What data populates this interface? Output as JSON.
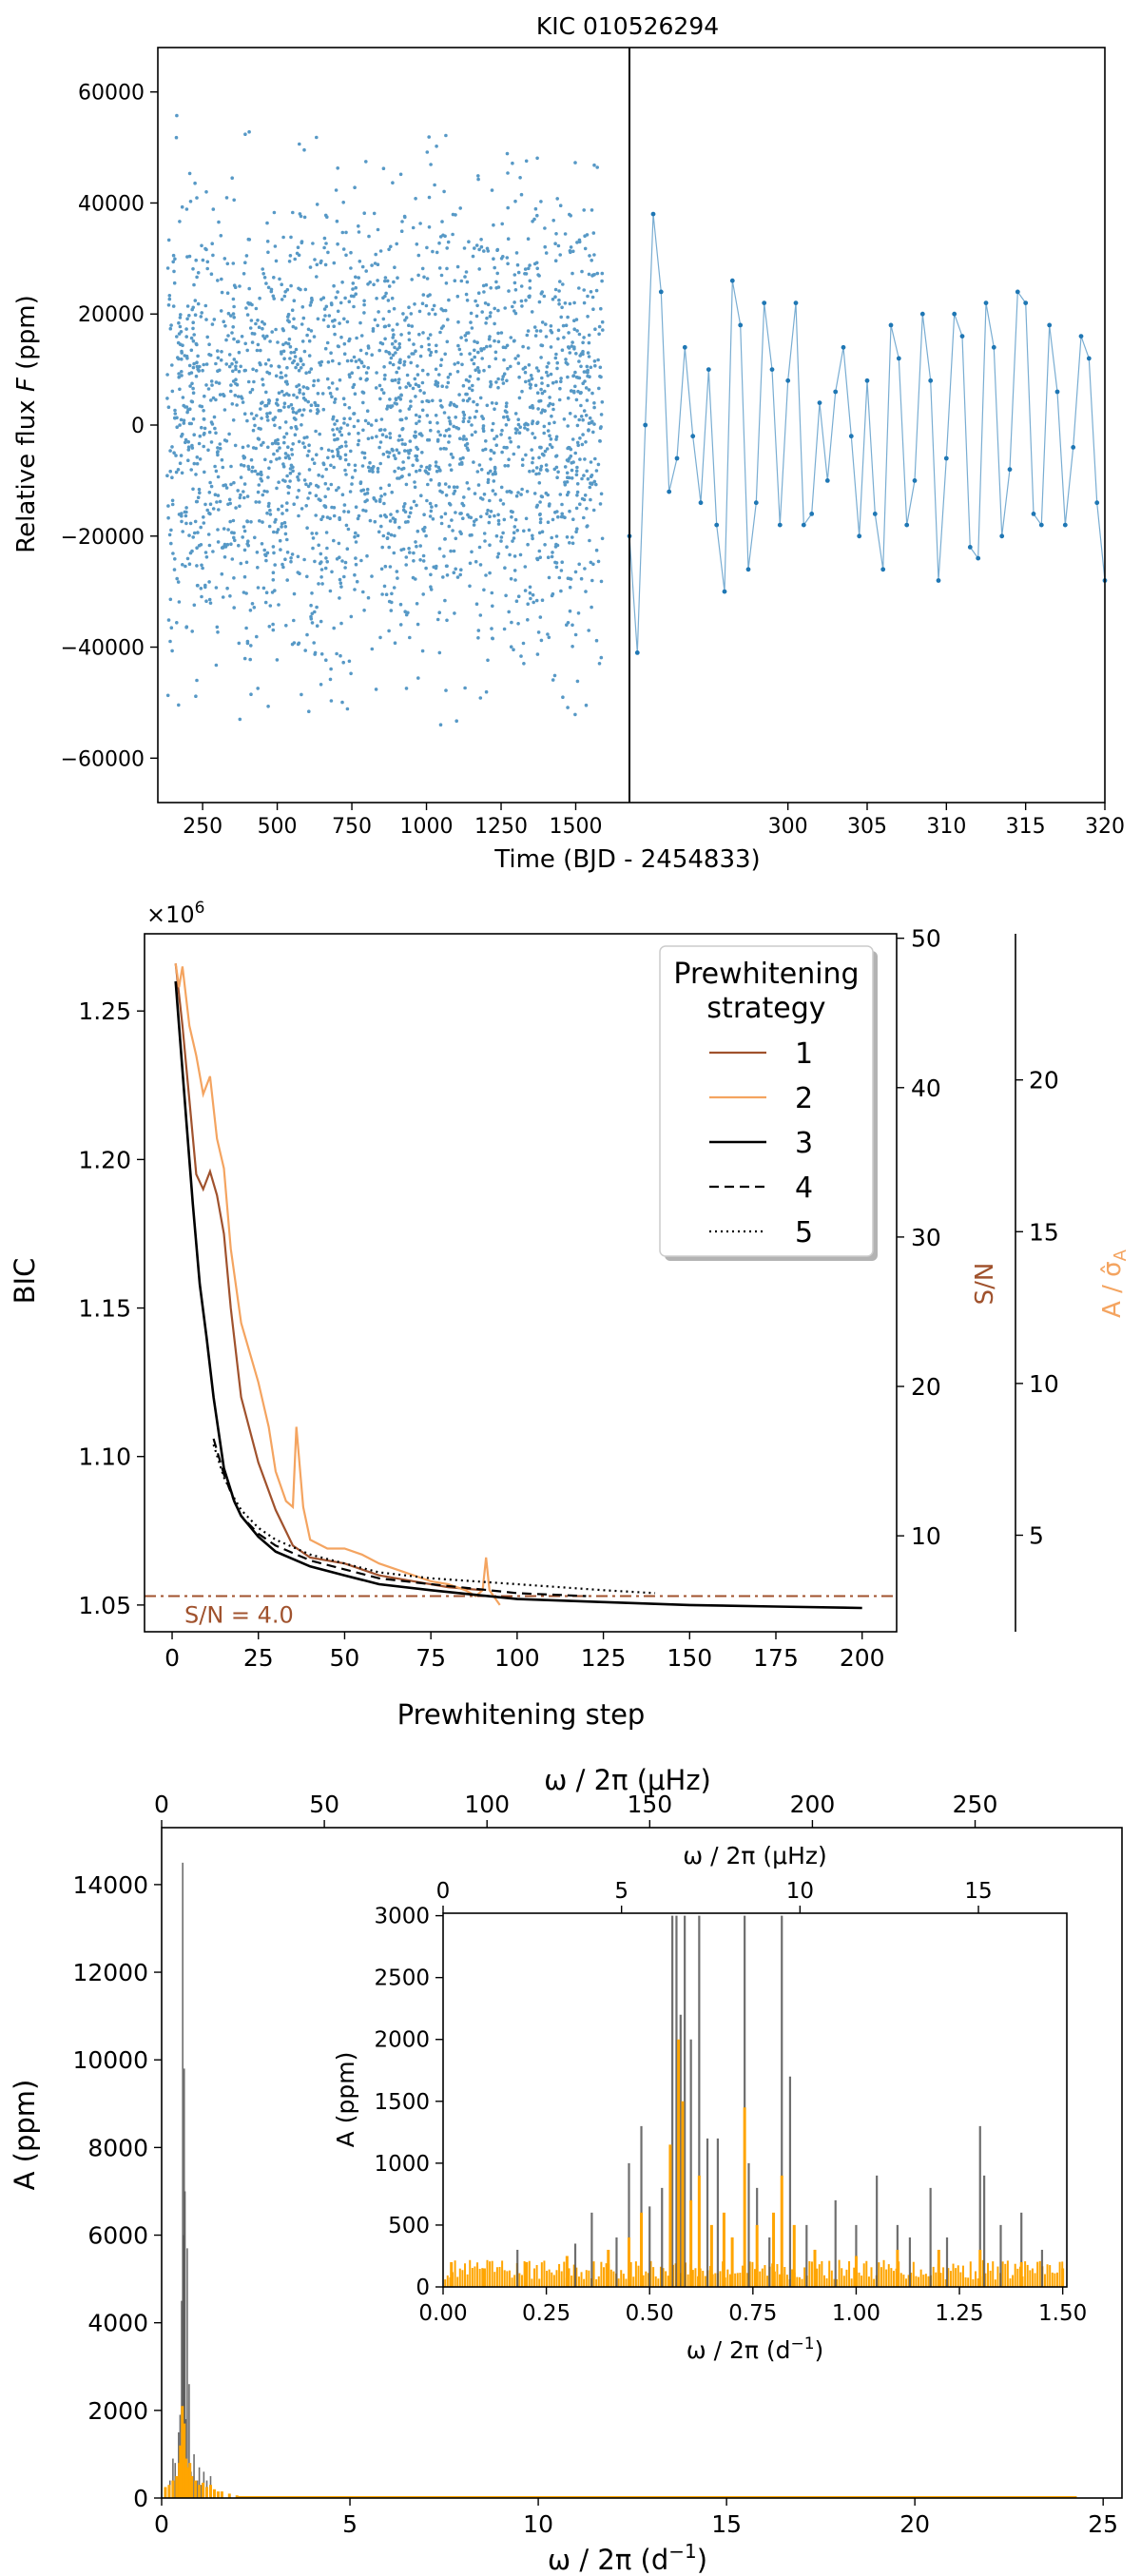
{
  "figure_title": "KIC 010526294",
  "colors": {
    "lightcurve": "#1f77b4",
    "strategy1": "#a0522d",
    "strategy2": "#f4a460",
    "strategy3": "#000000",
    "orange_spectrum": "#ffa500",
    "gray_spectrum": "#555555",
    "sn_threshold": "#a0522d"
  },
  "chart_data": [
    {
      "id": "lightcurve",
      "type": "scatter",
      "title": "KIC 010526294",
      "ylabel": "Relative flux F (ppm)",
      "ylabel_prefix": "Relative flux ",
      "ylabel_italic": "F",
      "ylabel_suffix": " (ppm)",
      "xlabel": "Time (BJD - 2454833)",
      "ylim": [
        -68000,
        68000
      ],
      "yticks": [
        -60000,
        -40000,
        -20000,
        0,
        20000,
        40000,
        60000
      ],
      "ytick_labels": [
        "−60000",
        "−40000",
        "−20000",
        "0",
        "20000",
        "40000",
        "60000"
      ],
      "left_panel": {
        "xlim": [
          100,
          1680
        ],
        "xticks": [
          250,
          500,
          750,
          1000,
          1250,
          1500
        ],
        "data_range": [
          131,
          1591
        ],
        "envelope_ppm": 60000
      },
      "right_panel": {
        "xlim": [
          290,
          320
        ],
        "xticks": [
          300,
          305,
          310,
          315,
          320
        ],
        "x": [
          290.0,
          290.5,
          291.0,
          291.5,
          292.0,
          292.5,
          293.0,
          293.5,
          294.0,
          294.5,
          295.0,
          295.5,
          296.0,
          296.5,
          297.0,
          297.5,
          298.0,
          298.5,
          299.0,
          299.5,
          300.0,
          300.5,
          301.0,
          301.5,
          302.0,
          302.5,
          303.0,
          303.5,
          304.0,
          304.5,
          305.0,
          305.5,
          306.0,
          306.5,
          307.0,
          307.5,
          308.0,
          308.5,
          309.0,
          309.5,
          310.0,
          310.5,
          311.0,
          311.5,
          312.0,
          312.5,
          313.0,
          313.5,
          314.0,
          314.5,
          315.0,
          315.5,
          316.0,
          316.5,
          317.0,
          317.5,
          318.0,
          318.5,
          319.0,
          319.5,
          320.0
        ],
        "y": [
          -20000,
          -41000,
          0,
          38000,
          24000,
          -12000,
          -6000,
          14000,
          -2000,
          -14000,
          10000,
          -18000,
          -30000,
          26000,
          18000,
          -26000,
          -14000,
          22000,
          10000,
          -18000,
          8000,
          22000,
          -18000,
          -16000,
          4000,
          -10000,
          6000,
          14000,
          -2000,
          -20000,
          8000,
          -16000,
          -26000,
          18000,
          12000,
          -18000,
          -10000,
          20000,
          8000,
          -28000,
          -6000,
          20000,
          16000,
          -22000,
          -24000,
          22000,
          14000,
          -20000,
          -8000,
          24000,
          22000,
          -16000,
          -18000,
          18000,
          6000,
          -18000,
          -4000,
          16000,
          12000,
          -14000,
          -28000
        ]
      }
    },
    {
      "id": "bic",
      "type": "line",
      "ylabel": "BIC",
      "xlabel": "Prewhitening step",
      "scale_label": "×10",
      "scale_exp": "6",
      "xlim": [
        -8,
        210
      ],
      "xticks": [
        0,
        25,
        50,
        75,
        100,
        125,
        150,
        175,
        200
      ],
      "ylim": [
        1.041,
        1.276
      ],
      "yticks": [
        1.05,
        1.1,
        1.15,
        1.2,
        1.25
      ],
      "ytick_labels": [
        "1.05",
        "1.10",
        "1.15",
        "1.20",
        "1.25"
      ],
      "right_axis_sn": {
        "label": "S/N",
        "ticks": [
          10,
          20,
          30,
          40,
          50
        ],
        "ticks_y_bic": [
          1.0733,
          1.1236,
          1.1739,
          1.2242,
          1.2745
        ]
      },
      "right_axis_amp": {
        "label_prefix": "A / ",
        "label_sym": "σ̂",
        "label_sub": "A",
        "ticks": [
          5,
          10,
          15,
          20
        ],
        "ticks_y_bic": [
          1.0735,
          1.1246,
          1.1757,
          1.2268
        ]
      },
      "threshold": {
        "label": "S/N = 4.0",
        "y": 1.053
      },
      "legend": {
        "title_line1": "Prewhitening",
        "title_line2": "strategy",
        "entries": [
          {
            "name": "1",
            "style": "solid",
            "color": "#a0522d"
          },
          {
            "name": "2",
            "style": "solid",
            "color": "#f4a460"
          },
          {
            "name": "3",
            "style": "solid",
            "color": "#000000"
          },
          {
            "name": "4",
            "style": "dashed",
            "color": "#000000"
          },
          {
            "name": "5",
            "style": "dotted",
            "color": "#000000"
          }
        ]
      },
      "series": [
        {
          "name": "1",
          "x": [
            1,
            3,
            5,
            7,
            9,
            11,
            13,
            15,
            17,
            20,
            25,
            30,
            35,
            40,
            50,
            60,
            70,
            80,
            90
          ],
          "y": [
            1.266,
            1.245,
            1.22,
            1.195,
            1.19,
            1.196,
            1.188,
            1.175,
            1.15,
            1.12,
            1.098,
            1.082,
            1.07,
            1.066,
            1.064,
            1.06,
            1.058,
            1.056,
            1.055
          ]
        },
        {
          "name": "2",
          "x": [
            1,
            2,
            3,
            5,
            7,
            9,
            11,
            13,
            15,
            17,
            20,
            25,
            28,
            30,
            33,
            35,
            36,
            38,
            40,
            45,
            50,
            55,
            60,
            65,
            70,
            75,
            80,
            85,
            88,
            90,
            91,
            92,
            95
          ],
          "y": [
            1.266,
            1.258,
            1.265,
            1.245,
            1.235,
            1.222,
            1.228,
            1.207,
            1.197,
            1.17,
            1.145,
            1.125,
            1.11,
            1.095,
            1.085,
            1.083,
            1.11,
            1.083,
            1.072,
            1.069,
            1.069,
            1.067,
            1.064,
            1.062,
            1.06,
            1.058,
            1.057,
            1.055,
            1.053,
            1.055,
            1.066,
            1.055,
            1.05
          ]
        },
        {
          "name": "3",
          "x": [
            1,
            2,
            4,
            6,
            8,
            10,
            12,
            15,
            18,
            20,
            25,
            30,
            40,
            50,
            60,
            75,
            100,
            125,
            150,
            175,
            200
          ],
          "y": [
            1.26,
            1.245,
            1.215,
            1.185,
            1.158,
            1.14,
            1.12,
            1.096,
            1.085,
            1.08,
            1.073,
            1.068,
            1.063,
            1.06,
            1.057,
            1.055,
            1.052,
            1.051,
            1.05,
            1.0495,
            1.049
          ]
        },
        {
          "name": "4",
          "x": [
            12,
            15,
            18,
            20,
            25,
            30,
            40,
            50,
            60,
            75,
            100,
            120
          ],
          "y": [
            1.106,
            1.094,
            1.085,
            1.08,
            1.074,
            1.07,
            1.065,
            1.062,
            1.059,
            1.057,
            1.054,
            1.053
          ]
        },
        {
          "name": "5",
          "x": [
            12,
            15,
            18,
            20,
            25,
            30,
            40,
            50,
            60,
            75,
            100,
            125,
            140
          ],
          "y": [
            1.104,
            1.093,
            1.086,
            1.082,
            1.076,
            1.072,
            1.067,
            1.064,
            1.061,
            1.059,
            1.057,
            1.055,
            1.054
          ]
        }
      ]
    },
    {
      "id": "spectrum",
      "type": "bar",
      "xlabel_main": "ω / 2π (d",
      "xlabel_unit_sup": "−1",
      "xlabel_close": ")",
      "xlabel_top": "ω / 2π (μHz)",
      "ylabel": "A (ppm)",
      "xlim": [
        0,
        25.5
      ],
      "xticks": [
        0,
        5,
        10,
        15,
        20,
        25
      ],
      "top_xticks": [
        0,
        50,
        100,
        150,
        200,
        250
      ],
      "top_xticks_d": [
        0,
        4.32,
        8.64,
        12.96,
        17.28,
        21.6
      ],
      "ylim": [
        0,
        15300
      ],
      "yticks": [
        0,
        2000,
        4000,
        6000,
        8000,
        10000,
        12000,
        14000
      ],
      "series": [
        {
          "name": "gray",
          "x": [
            0.22,
            0.3,
            0.36,
            0.45,
            0.49,
            0.53,
            0.56,
            0.58,
            0.6,
            0.62,
            0.64,
            0.68,
            0.73,
            0.78,
            0.82,
            0.86,
            0.95,
            1.0,
            1.05,
            1.12,
            1.2,
            1.3
          ],
          "values": [
            400,
            900,
            800,
            1500,
            1900,
            4500,
            14500,
            6000,
            9800,
            7000,
            1800,
            5700,
            2600,
            600,
            500,
            1000,
            400,
            700,
            300,
            600,
            400,
            500
          ]
        },
        {
          "name": "orange",
          "x": [
            0.1,
            0.2,
            0.3,
            0.4,
            0.47,
            0.5,
            0.55,
            0.57,
            0.6,
            0.65,
            0.7,
            0.75,
            0.8,
            0.9,
            1.0,
            1.1,
            1.2,
            1.3,
            1.4,
            1.5,
            1.6,
            1.8,
            2.0
          ],
          "values": [
            250,
            300,
            400,
            500,
            800,
            1200,
            2100,
            1500,
            1700,
            900,
            700,
            800,
            500,
            400,
            300,
            350,
            250,
            300,
            200,
            150,
            150,
            100,
            60
          ]
        }
      ],
      "inset": {
        "xlabel_main": "ω / 2π (d",
        "xlabel_unit_sup": "−1",
        "xlabel_close": ")",
        "xlabel_top": "ω / 2π (μHz)",
        "ylabel": "A (ppm)",
        "xlim": [
          0,
          1.51
        ],
        "xticks": [
          0.0,
          0.25,
          0.5,
          0.75,
          1.0,
          1.25,
          1.5
        ],
        "xtick_labels": [
          "0.00",
          "0.25",
          "0.50",
          "0.75",
          "1.00",
          "1.25",
          "1.50"
        ],
        "top_xticks": [
          0,
          5,
          10,
          15
        ],
        "top_xticks_d": [
          0,
          0.432,
          0.864,
          1.296
        ],
        "ylim": [
          0,
          3020
        ],
        "yticks": [
          0,
          500,
          1000,
          1500,
          2000,
          2500,
          3000
        ],
        "gray_x": [
          0.18,
          0.32,
          0.36,
          0.42,
          0.45,
          0.48,
          0.5,
          0.53,
          0.555,
          0.565,
          0.575,
          0.585,
          0.6,
          0.62,
          0.64,
          0.665,
          0.7,
          0.73,
          0.74,
          0.76,
          0.79,
          0.82,
          0.84,
          0.88,
          0.9,
          0.95,
          1.0,
          1.05,
          1.1,
          1.13,
          1.18,
          1.22,
          1.3,
          1.31,
          1.35,
          1.4,
          1.45
        ],
        "gray_values": [
          300,
          350,
          600,
          400,
          1000,
          1300,
          650,
          800,
          3000,
          3000,
          2200,
          3000,
          2000,
          3000,
          1200,
          1200,
          400,
          3000,
          1000,
          800,
          400,
          3000,
          1700,
          500,
          300,
          700,
          500,
          900,
          500,
          400,
          800,
          400,
          1300,
          900,
          500,
          600,
          300
        ],
        "orange_x": [
          0.02,
          0.1,
          0.2,
          0.3,
          0.4,
          0.45,
          0.48,
          0.55,
          0.57,
          0.58,
          0.6,
          0.62,
          0.65,
          0.68,
          0.7,
          0.73,
          0.76,
          0.8,
          0.82,
          0.85,
          0.9,
          1.0,
          1.1,
          1.2,
          1.3,
          1.4,
          1.5
        ],
        "orange_values": [
          200,
          150,
          200,
          250,
          300,
          400,
          600,
          1150,
          2000,
          1500,
          700,
          900,
          500,
          600,
          400,
          1450,
          500,
          600,
          900,
          500,
          300,
          250,
          300,
          300,
          300,
          200,
          150
        ]
      }
    }
  ]
}
